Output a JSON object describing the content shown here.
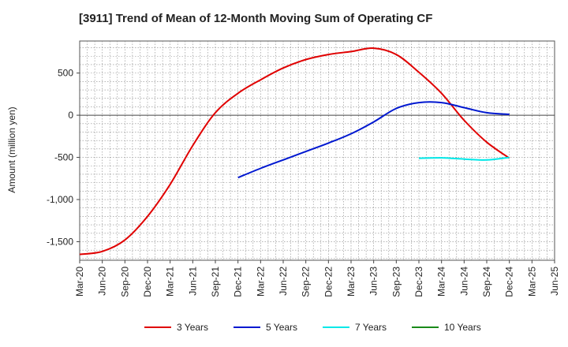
{
  "chart_data": {
    "type": "line",
    "title": "[3911]  Trend of Mean of 12-Month Moving Sum of Operating CF",
    "xlabel": "",
    "ylabel": "Amount (million yen)",
    "ylim": [
      -1720,
      880
    ],
    "y_ticks": [
      500,
      0,
      -500,
      -1000,
      -1500
    ],
    "y_tick_labels": [
      "500",
      "0",
      "-500",
      "-1,000",
      "-1,500"
    ],
    "x_tick_labels": [
      "Mar-20",
      "Jun-20",
      "Sep-20",
      "Dec-20",
      "Mar-21",
      "Jun-21",
      "Sep-21",
      "Dec-21",
      "Mar-22",
      "Jun-22",
      "Sep-22",
      "Dec-22",
      "Mar-23",
      "Jun-23",
      "Sep-23",
      "Dec-23",
      "Mar-24",
      "Jun-24",
      "Sep-24",
      "Dec-24",
      "Mar-25",
      "Jun-25"
    ],
    "grid": true,
    "legend_position": "bottom",
    "series": [
      {
        "name": "3 Years",
        "color": "#e00000",
        "points": [
          [
            "Mar-20",
            -1650
          ],
          [
            "Jun-20",
            -1615
          ],
          [
            "Sep-20",
            -1480
          ],
          [
            "Dec-20",
            -1200
          ],
          [
            "Mar-21",
            -820
          ],
          [
            "Jun-21",
            -360
          ],
          [
            "Sep-21",
            30
          ],
          [
            "Dec-21",
            260
          ],
          [
            "Mar-22",
            420
          ],
          [
            "Jun-22",
            560
          ],
          [
            "Sep-22",
            660
          ],
          [
            "Dec-22",
            720
          ],
          [
            "Mar-23",
            755
          ],
          [
            "Jun-23",
            795
          ],
          [
            "Sep-23",
            720
          ],
          [
            "Dec-23",
            510
          ],
          [
            "Mar-24",
            260
          ],
          [
            "Jun-24",
            -60
          ],
          [
            "Sep-24",
            -320
          ],
          [
            "Dec-24",
            -510
          ]
        ]
      },
      {
        "name": "5 Years",
        "color": "#0018d0",
        "points": [
          [
            "Dec-21",
            -740
          ],
          [
            "Mar-22",
            -630
          ],
          [
            "Jun-22",
            -530
          ],
          [
            "Sep-22",
            -430
          ],
          [
            "Dec-22",
            -330
          ],
          [
            "Mar-23",
            -220
          ],
          [
            "Jun-23",
            -80
          ],
          [
            "Sep-23",
            80
          ],
          [
            "Dec-23",
            150
          ],
          [
            "Mar-24",
            150
          ],
          [
            "Jun-24",
            90
          ],
          [
            "Sep-24",
            30
          ],
          [
            "Dec-24",
            10
          ]
        ]
      },
      {
        "name": "7 Years",
        "color": "#00e8e8",
        "points": [
          [
            "Dec-23",
            -510
          ],
          [
            "Mar-24",
            -505
          ],
          [
            "Jun-24",
            -520
          ],
          [
            "Sep-24",
            -530
          ],
          [
            "Dec-24",
            -500
          ]
        ]
      },
      {
        "name": "10 Years",
        "color": "#1a8a1a",
        "points": []
      }
    ]
  }
}
